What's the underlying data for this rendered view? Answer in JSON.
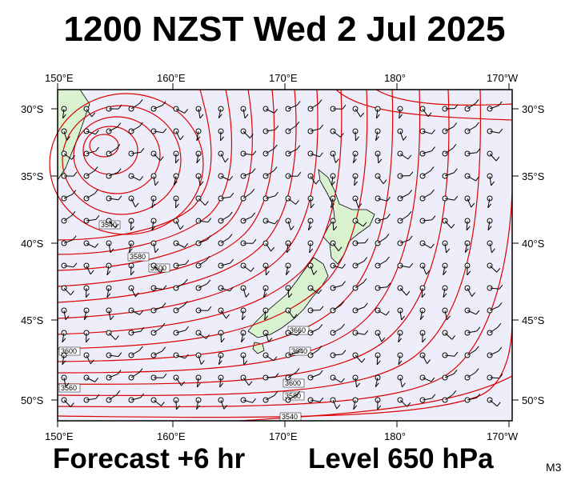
{
  "header": {
    "title": "1200 NZST Wed 2 Jul 2025"
  },
  "footer": {
    "forecast": "Forecast +6 hr",
    "level": "Level 650 hPa",
    "code": "M3"
  },
  "axes": {
    "lon_labels": [
      "150°E",
      "160°E",
      "170°E",
      "180°",
      "170°W"
    ],
    "lat_labels": [
      "30°S",
      "35°S",
      "40°S",
      "45°S",
      "50°S"
    ]
  },
  "contour_labels": [
    "3520",
    "3540",
    "3560",
    "3580",
    "3600",
    "3620",
    "3640",
    "3660"
  ],
  "colors": {
    "ocean": "#eeeefb",
    "land": "#d9f2d0",
    "contour": "#dd0000",
    "wind": "#000000"
  }
}
